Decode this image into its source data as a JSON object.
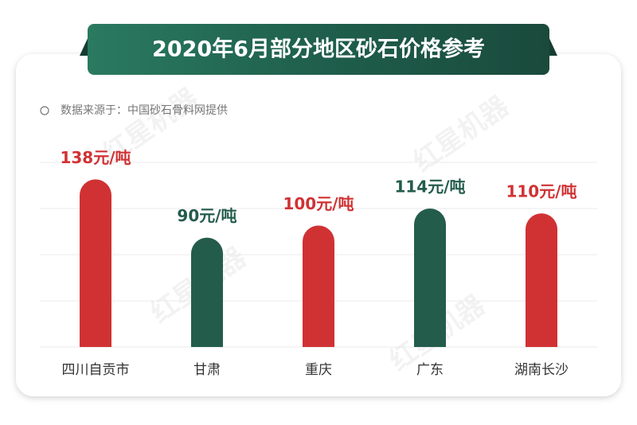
{
  "chart_data": {
    "type": "bar",
    "title": "2020年6月部分地区砂石价格参考",
    "subtitle": "数据来源于：中国砂石骨料网提供",
    "watermark": "红星机器",
    "categories": [
      "四川自贡市",
      "甘肃",
      "重庆",
      "广东",
      "湖南长沙"
    ],
    "values": [
      138,
      90,
      100,
      114,
      110
    ],
    "value_labels": [
      "138元/吨",
      "90元/吨",
      "100元/吨",
      "114元/吨",
      "110元/吨"
    ],
    "colors": [
      "#d03234",
      "#245c4c",
      "#d03234",
      "#245c4c",
      "#d03234"
    ],
    "ylim": [
      0,
      152
    ],
    "yticks": [
      0,
      38,
      76,
      114,
      152
    ],
    "grid": true
  }
}
